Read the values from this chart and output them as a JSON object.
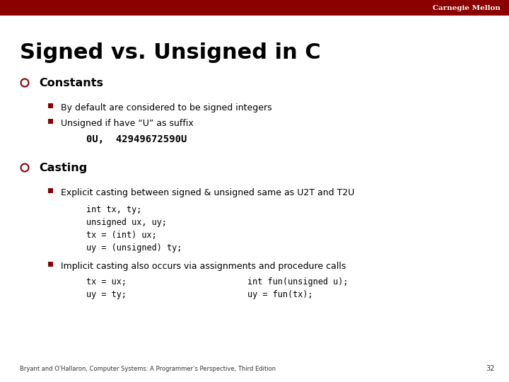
{
  "title": "Signed vs. Unsigned in C",
  "background_color": "#ffffff",
  "header_bar_color": "#8b0000",
  "header_text": "Carnegie Mellon",
  "header_text_color": "#ffffff",
  "title_color": "#000000",
  "title_fontsize": 22,
  "bullet_color": "#8b0000",
  "sub_bullet_color": "#8b0000",
  "text_color": "#000000",
  "code_color": "#000000",
  "footer_text": "Bryant and O'Hallaron, Computer Systems: A Programmer’s Perspective, Third Edition",
  "footer_page": "32",
  "content": [
    {
      "type": "bullet",
      "text": "Constants",
      "sub_items": [
        {
          "type": "sub_bullet",
          "text": "By default are considered to be signed integers"
        },
        {
          "type": "sub_bullet",
          "text": "Unsigned if have “U” as suffix"
        },
        {
          "type": "code",
          "text": "0U,  42949672590U"
        }
      ]
    },
    {
      "type": "bullet",
      "text": "Casting",
      "sub_items": [
        {
          "type": "sub_bullet",
          "text": "Explicit casting between signed & unsigned same as U2T and T2U"
        },
        {
          "type": "code_block",
          "lines": [
            "int tx, ty;",
            "unsigned ux, uy;",
            "tx = (int) ux;",
            "uy = (unsigned) ty;"
          ]
        },
        {
          "type": "sub_bullet",
          "text": "Implicit casting also occurs via assignments and procedure calls"
        },
        {
          "type": "code_two_col",
          "left": [
            "tx = ux;",
            "uy = ty;"
          ],
          "right": [
            "int fun(unsigned u);",
            "uy = fun(tx);"
          ]
        }
      ]
    }
  ]
}
